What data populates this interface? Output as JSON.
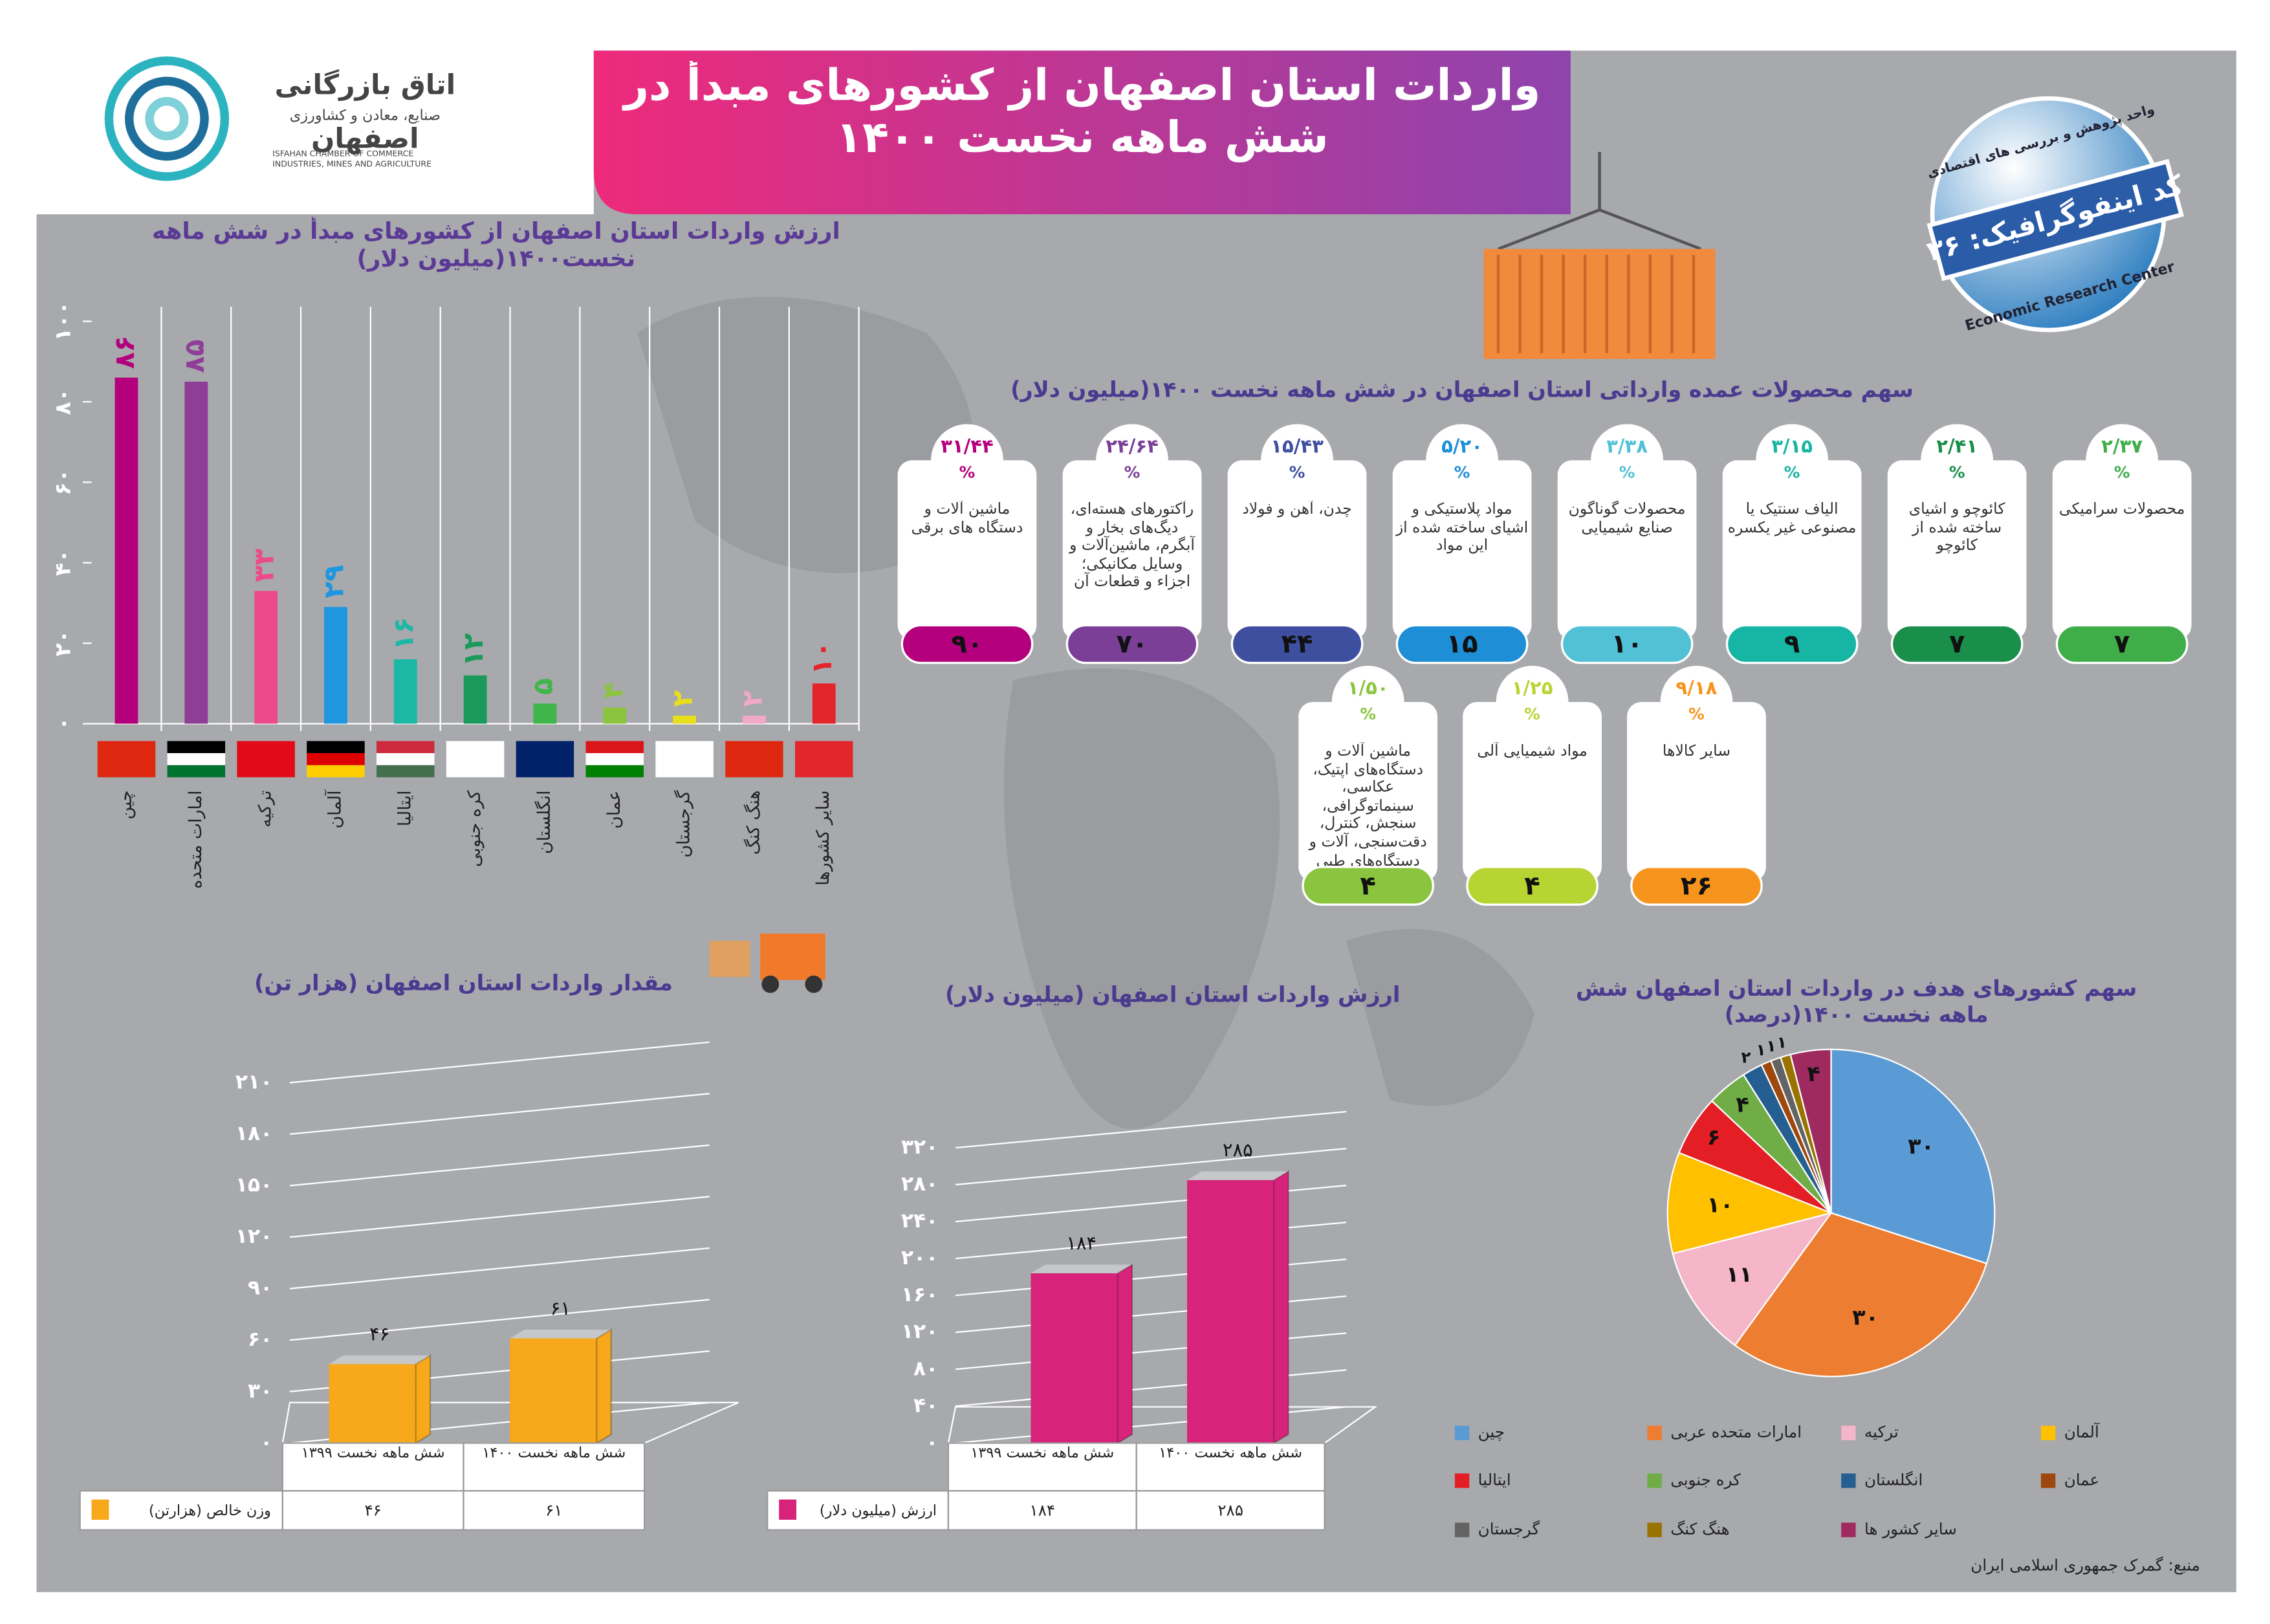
{
  "header": {
    "title": "واردات استان اصفهان از کشورهای مبدأ در شش ماهه نخست ۱۴۰۰",
    "logo": {
      "name": "اتاق بازرگانی",
      "subtitle": "صنایع، معادن و کشاورزی",
      "city": "اصفهان",
      "english": "ISFAHAN CHAMBER OF COMMERCE INDUSTRIES, MINES AND AGRICULTURE"
    },
    "badge": {
      "unit": "واحد پژوهش و بررسی های اقتصادی",
      "code": "کد اینفوگرافیک: ۳۶",
      "english": "Economic Research Center"
    }
  },
  "chart_data": [
    {
      "type": "bar",
      "title": "ارزش واردات استان اصفهان از کشورهای مبدأ در شش ماهه نخست۱۴۰۰(میلیون دلار)",
      "categories": [
        "چین",
        "امارات متحده",
        "ترکیه",
        "آلمان",
        "ایتالیا",
        "کره جنوبی",
        "انگلستان",
        "عمان",
        "گرجستان",
        "هنگ کنگ",
        "سایر کشورها"
      ],
      "values": [
        86,
        85,
        33,
        29,
        16,
        12,
        5,
        4,
        2,
        2,
        10
      ],
      "value_labels": [
        "۸۶",
        "۸۵",
        "۳۳",
        "۲۹",
        "۱۶",
        "۱۲",
        "۵",
        "۴",
        "۲",
        "۲",
        "۱۰"
      ],
      "colors": [
        "#b5007e",
        "#8e3e97",
        "#ec4a8b",
        "#1e96e0",
        "#1cb8a5",
        "#1a9b5b",
        "#3fb54a",
        "#8bc53f",
        "#e8df1a",
        "#f2a8c8",
        "#e3262c"
      ],
      "ylim": [
        0,
        100
      ],
      "yticks": [
        {
          "value": 0,
          "label": "۰"
        },
        {
          "value": 20,
          "label": "۲۰"
        },
        {
          "value": 40,
          "label": "۴۰"
        },
        {
          "value": 60,
          "label": "۶۰"
        },
        {
          "value": 80,
          "label": "۸۰"
        },
        {
          "value": 100,
          "label": "۱۰۰"
        }
      ]
    },
    {
      "type": "cards",
      "title": "سهم محصولات عمده وارداتی استان اصفهان در شش ماهه نخست ۱۴۰۰(میلیون دلار)",
      "percent_sign": "%",
      "categories": [
        "ماشین آلات و دستگاه های برقی",
        "رآکتورهای هسته‌ای، دیگ‌های بخار و آبگرم، ماشین‌آلات و وسایل مکانیکی؛ اجزاء و قطعات آن",
        "چدن، آهن و فولاد",
        "مواد پلاستیکی و اشیای ساخته شده از این مواد",
        "محصولات گوناگون صنایع شیمیایی",
        "الیاف سنتیک یا مصنوعی غیر یکسره",
        "کائوچو و اشیای ساخته شده از کائوچو",
        "محصولات سرامیکی",
        "ماشین آلات و دستگاه‌های اپتیک، عکاسی، سینماتوگرافی، سنجش، کنترل، دقت‌سنجی، آلات و دستگاه‌های طبی",
        "مواد شیمیایی آلی",
        "سایر کالاها"
      ],
      "shares": [
        31.44,
        24.64,
        15.43,
        5.2,
        3.38,
        3.15,
        2.41,
        2.37,
        1.5,
        1.25,
        9.18
      ],
      "share_labels": [
        "۳۱/۴۴",
        "۲۴/۶۴",
        "۱۵/۴۳",
        "۵/۲۰",
        "۳/۳۸",
        "۳/۱۵",
        "۲/۴۱",
        "۲/۳۷",
        "۱/۵۰",
        "۱/۲۵",
        "۹/۱۸"
      ],
      "values": [
        90,
        70,
        44,
        15,
        10,
        9,
        7,
        7,
        4,
        4,
        26
      ],
      "value_labels": [
        "۹۰",
        "۷۰",
        "۴۴",
        "۱۵",
        "۱۰",
        "۹",
        "۷",
        "۷",
        "۴",
        "۴",
        "۲۶"
      ],
      "colors": [
        "#b5007e",
        "#7b3f98",
        "#3f4fa0",
        "#1e8fd6",
        "#52c1d6",
        "#17b5a4",
        "#1a8f4b",
        "#3fae49",
        "#8bc53f",
        "#b8d433",
        "#f7941d"
      ]
    },
    {
      "type": "bar3d",
      "title": "مقدار واردات استان اصفهان (هزار تن)",
      "categories": [
        "شش ماهه نخست ۱۳۹۹",
        "شش ماهه نخست ۱۴۰۰"
      ],
      "series": [
        {
          "name": "وزن خالص (هزارتن)",
          "color": "#f7a81b",
          "values": [
            46,
            61
          ],
          "value_labels": [
            "۴۶",
            "۶۱"
          ]
        }
      ],
      "ylim": [
        0,
        210
      ],
      "yticks": [
        {
          "value": 0,
          "label": "۰"
        },
        {
          "value": 30,
          "label": "۳۰"
        },
        {
          "value": 60,
          "label": "۶۰"
        },
        {
          "value": 90,
          "label": "۹۰"
        },
        {
          "value": 120,
          "label": "۱۲۰"
        },
        {
          "value": 150,
          "label": "۱۵۰"
        },
        {
          "value": 180,
          "label": "۱۸۰"
        },
        {
          "value": 210,
          "label": "۲۱۰"
        }
      ]
    },
    {
      "type": "bar3d",
      "title": "ارزش واردات استان اصفهان (میلیون دلار)",
      "categories": [
        "شش ماهه نخست ۱۳۹۹",
        "شش ماهه نخست ۱۴۰۰"
      ],
      "series": [
        {
          "name": "ارزش (میلیون دلار)",
          "color": "#d8237a",
          "values": [
            184,
            285
          ],
          "value_labels": [
            "۱۸۴",
            "۲۸۵"
          ]
        }
      ],
      "ylim": [
        0,
        320
      ],
      "yticks": [
        {
          "value": 0,
          "label": "۰"
        },
        {
          "value": 40,
          "label": "۴۰"
        },
        {
          "value": 80,
          "label": "۸۰"
        },
        {
          "value": 120,
          "label": "۱۲۰"
        },
        {
          "value": 160,
          "label": "۱۶۰"
        },
        {
          "value": 200,
          "label": "۲۰۰"
        },
        {
          "value": 240,
          "label": "۲۴۰"
        },
        {
          "value": 280,
          "label": "۲۸۰"
        },
        {
          "value": 320,
          "label": "۳۲۰"
        }
      ]
    },
    {
      "type": "pie",
      "title": "سهم کشورهای هدف در واردات استان اصفهان شش ماهه نخست ۱۴۰۰(درصد)",
      "categories": [
        "چین",
        "امارات متحده عربی",
        "ترکیه",
        "آلمان",
        "ایتالیا",
        "کره جنوبی",
        "انگلستان",
        "عمان",
        "گرجستان",
        "هنگ کنگ",
        "سایر کشور ها"
      ],
      "values": [
        30,
        30,
        11,
        10,
        6,
        4,
        2,
        1,
        1,
        1,
        4
      ],
      "value_labels": [
        "۳۰",
        "۳۰",
        "۱۱",
        "۱۰",
        "۶",
        "۴",
        "۲",
        "۱",
        "۱",
        "۱",
        "۴"
      ],
      "colors": [
        "#5b9bd5",
        "#ed7d31",
        "#f4b6c8",
        "#ffc000",
        "#e31e24",
        "#70ad47",
        "#255e91",
        "#9e480e",
        "#636363",
        "#997300",
        "#9e2a5f"
      ]
    }
  ],
  "source": "منبع: گمرک جمهوری اسلامی ایران"
}
